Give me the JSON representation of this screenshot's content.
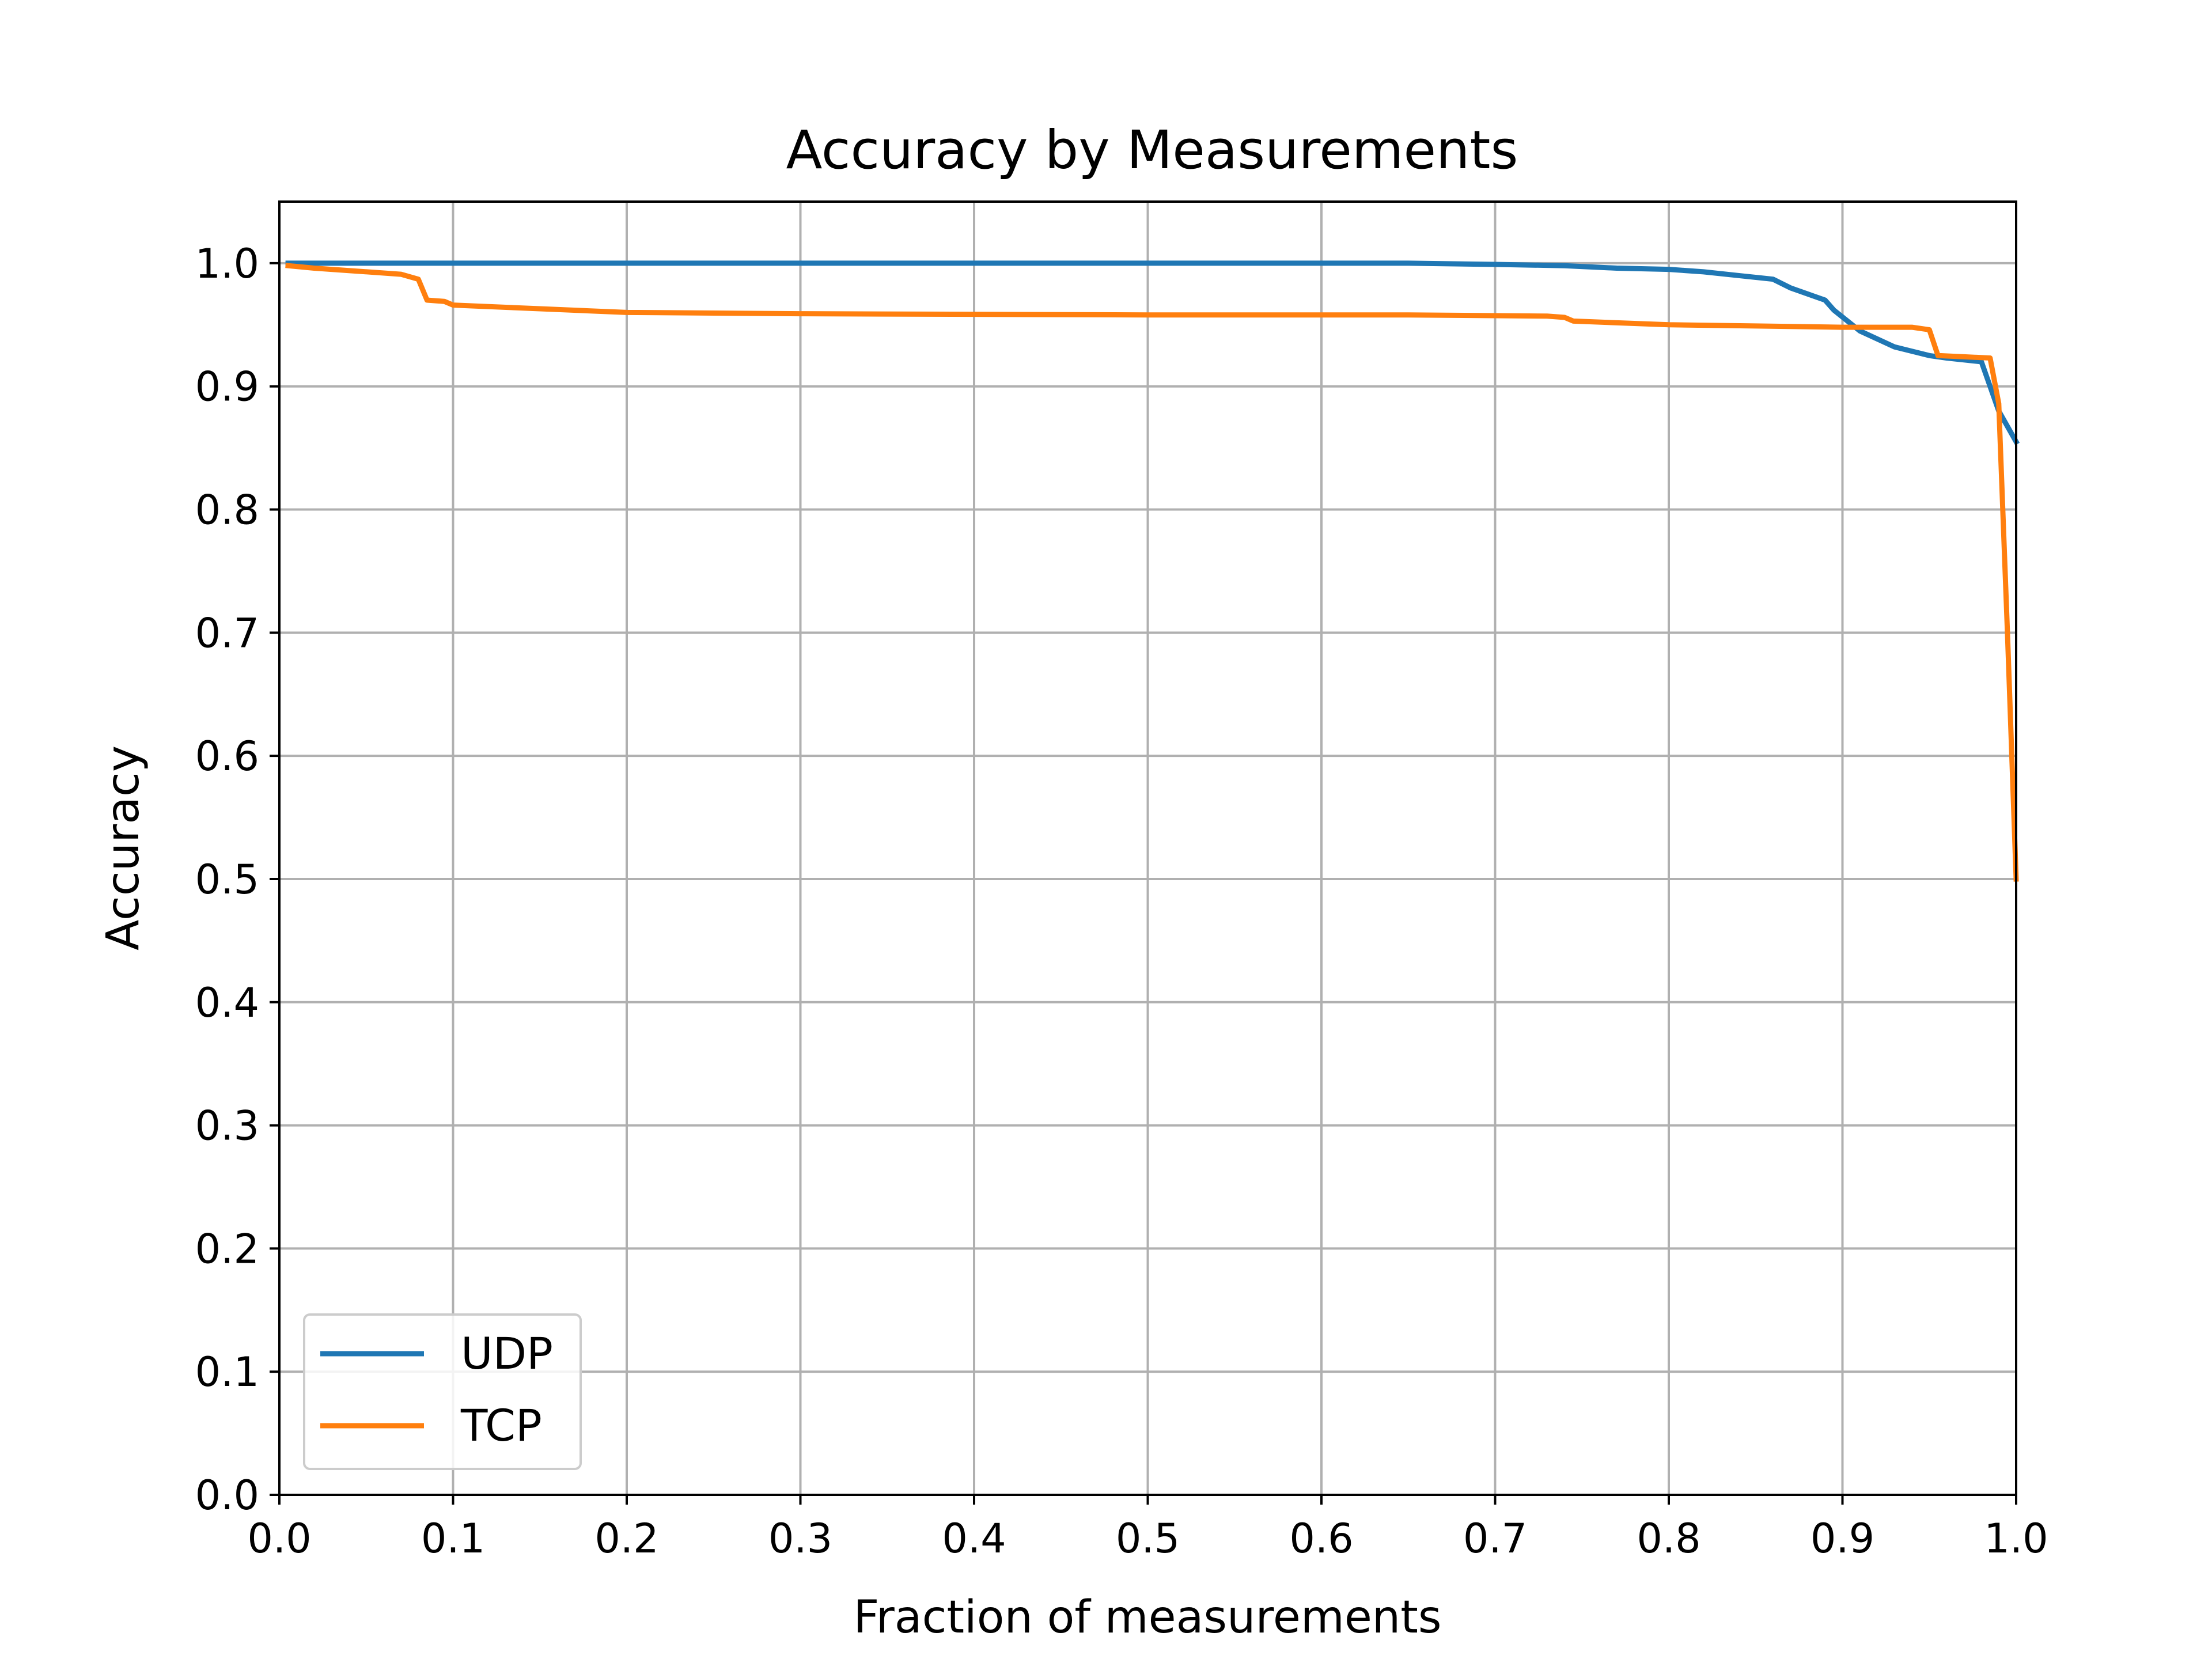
{
  "chart_data": {
    "type": "line",
    "title": "Accuracy by Measurements",
    "xlabel": "Fraction of measurements",
    "ylabel": "Accuracy",
    "xlim": [
      0.0,
      1.0
    ],
    "ylim": [
      0.0,
      1.05
    ],
    "xticks": [
      0.0,
      0.1,
      0.2,
      0.3,
      0.4,
      0.5,
      0.6,
      0.7,
      0.8,
      0.9,
      1.0
    ],
    "xtick_labels": [
      "0.0",
      "0.1",
      "0.2",
      "0.3",
      "0.4",
      "0.5",
      "0.6",
      "0.7",
      "0.8",
      "0.9",
      "1.0"
    ],
    "yticks": [
      0.0,
      0.1,
      0.2,
      0.3,
      0.4,
      0.5,
      0.6,
      0.7,
      0.8,
      0.9,
      1.0
    ],
    "ytick_labels": [
      "0.0",
      "0.1",
      "0.2",
      "0.3",
      "0.4",
      "0.5",
      "0.6",
      "0.7",
      "0.8",
      "0.9",
      "1.0"
    ],
    "grid": true,
    "legend_position": "lower-left",
    "series": [
      {
        "name": "UDP",
        "color": "#1f77b4",
        "x": [
          0.005,
          0.1,
          0.3,
          0.5,
          0.65,
          0.7,
          0.74,
          0.77,
          0.8,
          0.82,
          0.84,
          0.86,
          0.87,
          0.88,
          0.89,
          0.895,
          0.91,
          0.93,
          0.95,
          0.96,
          0.98,
          0.99,
          1.0
        ],
        "y": [
          1.0,
          1.0,
          1.0,
          1.0,
          1.0,
          0.999,
          0.998,
          0.996,
          0.995,
          0.993,
          0.99,
          0.987,
          0.98,
          0.975,
          0.97,
          0.962,
          0.945,
          0.932,
          0.925,
          0.923,
          0.92,
          0.88,
          0.855
        ]
      },
      {
        "name": "TCP",
        "color": "#ff7f0e",
        "x": [
          0.005,
          0.02,
          0.04,
          0.07,
          0.08,
          0.085,
          0.095,
          0.1,
          0.15,
          0.2,
          0.3,
          0.5,
          0.65,
          0.73,
          0.74,
          0.745,
          0.8,
          0.85,
          0.9,
          0.94,
          0.95,
          0.955,
          0.97,
          0.985,
          0.99,
          0.995,
          1.0
        ],
        "y": [
          0.998,
          0.996,
          0.994,
          0.991,
          0.987,
          0.97,
          0.969,
          0.966,
          0.963,
          0.96,
          0.959,
          0.958,
          0.958,
          0.957,
          0.956,
          0.953,
          0.95,
          0.949,
          0.948,
          0.948,
          0.946,
          0.925,
          0.924,
          0.923,
          0.886,
          0.7,
          0.5
        ]
      }
    ]
  }
}
